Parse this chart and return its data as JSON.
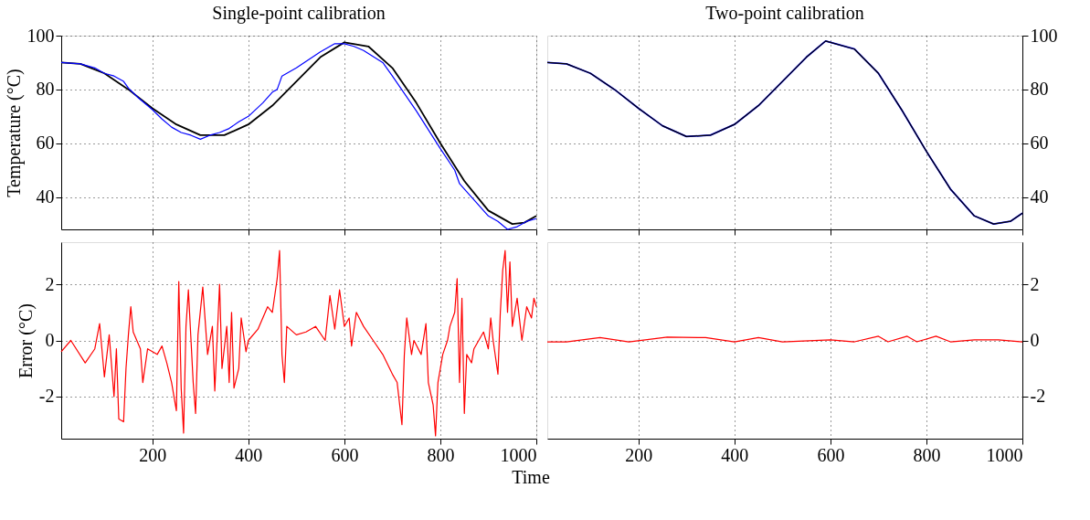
{
  "chart_data": [
    {
      "type": "line",
      "title": "Single-point calibration",
      "ylabel": "Temperature (°C)",
      "xlim": [
        10,
        1000
      ],
      "ylim": [
        28,
        100
      ],
      "xticks": [
        200,
        400,
        600,
        800,
        1000
      ],
      "yticks": [
        40,
        60,
        80,
        100
      ],
      "grid": true,
      "tick_labels": "y",
      "series": [
        {
          "color": "#000000",
          "x": [
            10,
            50,
            100,
            150,
            200,
            250,
            300,
            350,
            400,
            450,
            500,
            550,
            600,
            650,
            700,
            750,
            800,
            850,
            900,
            950,
            975,
            1000
          ],
          "values": [
            90,
            89.5,
            86,
            80,
            73,
            67,
            63,
            63,
            67,
            74,
            83,
            92,
            97.5,
            96,
            88,
            75,
            60,
            46,
            35,
            30,
            30.5,
            33
          ]
        },
        {
          "color": "#0000ff",
          "x": [
            10,
            50,
            80,
            100,
            120,
            140,
            150,
            170,
            200,
            220,
            240,
            260,
            280,
            300,
            320,
            340,
            360,
            380,
            400,
            430,
            450,
            460,
            470,
            500,
            550,
            580,
            600,
            620,
            640,
            680,
            700,
            750,
            800,
            830,
            840,
            850,
            870,
            900,
            920,
            940,
            960,
            980,
            1000
          ],
          "values": [
            90,
            89.5,
            88,
            86,
            85,
            83,
            80.5,
            77,
            72.5,
            69,
            66,
            64,
            63,
            61.5,
            63,
            64,
            65.5,
            68,
            70,
            75,
            79,
            80,
            85,
            88,
            94,
            97,
            97,
            96,
            94.5,
            90,
            85,
            72,
            58,
            50,
            45,
            43,
            39,
            33,
            31,
            28,
            29,
            31,
            32
          ]
        }
      ]
    },
    {
      "type": "line",
      "title": "Two-point calibration",
      "xlim": [
        10,
        1000
      ],
      "ylim": [
        28,
        100
      ],
      "xticks": [
        200,
        400,
        600,
        800,
        1000
      ],
      "yticks": [
        40,
        60,
        80,
        100
      ],
      "grid": true,
      "tick_labels": "y",
      "series": [
        {
          "color": "#0000ff",
          "x": [
            10,
            50,
            100,
            150,
            200,
            250,
            300,
            350,
            400,
            450,
            500,
            550,
            590,
            650,
            700,
            750,
            800,
            850,
            900,
            940,
            975,
            1000
          ],
          "values": [
            90,
            89.5,
            86,
            80,
            73,
            66.5,
            62.5,
            63,
            67,
            74,
            83,
            92,
            98,
            95,
            86,
            72,
            57,
            43,
            33,
            30,
            31,
            34
          ]
        },
        {
          "color": "#000000",
          "x": [
            10,
            50,
            100,
            150,
            200,
            250,
            300,
            350,
            400,
            450,
            500,
            550,
            590,
            650,
            700,
            750,
            800,
            850,
            900,
            940,
            975,
            1000
          ],
          "values": [
            90,
            89.5,
            86,
            80,
            73,
            66.5,
            62.5,
            63,
            67,
            74,
            83,
            92,
            98,
            95,
            86,
            72,
            57,
            43,
            33,
            30,
            31,
            34
          ]
        }
      ]
    },
    {
      "type": "line",
      "ylabel": "Error (°C)",
      "xlabel": "Time",
      "xlim": [
        10,
        1000
      ],
      "ylim": [
        -3.5,
        3.5
      ],
      "xticks": [
        200,
        400,
        600,
        800,
        {
          "value": 1000,
          "label": "1000"
        }
      ],
      "yticks": [
        -2,
        0,
        2
      ],
      "grid": true,
      "series": [
        {
          "color": "#ff0000",
          "x": [
            10,
            30,
            60,
            80,
            90,
            100,
            110,
            120,
            125,
            130,
            140,
            145,
            150,
            155,
            160,
            175,
            180,
            190,
            210,
            220,
            230,
            240,
            250,
            255,
            260,
            265,
            270,
            275,
            285,
            290,
            295,
            305,
            315,
            325,
            330,
            340,
            345,
            355,
            360,
            365,
            370,
            380,
            385,
            395,
            400,
            420,
            440,
            450,
            460,
            465,
            470,
            475,
            480,
            500,
            520,
            540,
            560,
            570,
            580,
            590,
            600,
            610,
            615,
            625,
            640,
            660,
            680,
            700,
            710,
            720,
            725,
            730,
            740,
            745,
            760,
            770,
            775,
            785,
            790,
            795,
            805,
            815,
            820,
            830,
            835,
            840,
            845,
            850,
            855,
            865,
            870,
            880,
            890,
            900,
            905,
            910,
            920,
            925,
            930,
            935,
            940,
            945,
            950,
            960,
            970,
            980,
            990,
            995,
            1000
          ],
          "values": [
            -0.4,
            0,
            -0.8,
            -0.3,
            0.6,
            -1.3,
            0.2,
            -2,
            -0.3,
            -2.8,
            -2.9,
            -1,
            0.2,
            1.2,
            0.3,
            -0.3,
            -1.5,
            -0.3,
            -0.5,
            -0.2,
            -0.8,
            -1.5,
            -2.5,
            2.1,
            -1.7,
            -3.3,
            0.5,
            1.8,
            -1.5,
            -2.6,
            0.2,
            1.9,
            -0.5,
            0.5,
            -1.8,
            2,
            -1,
            0.5,
            -1.5,
            1,
            -1.7,
            -1,
            0.8,
            -0.4,
            0,
            0.4,
            1.2,
            1,
            2.2,
            3.2,
            -0.5,
            -1.5,
            0.5,
            0.2,
            0.3,
            0.5,
            0,
            1.6,
            0.4,
            1.8,
            0.5,
            0.8,
            -0.2,
            1,
            0.5,
            0,
            -0.5,
            -1.2,
            -1.5,
            -3,
            -0.5,
            0.8,
            -0.5,
            0,
            -0.5,
            0.6,
            -1.5,
            -2.3,
            -3.4,
            -1.5,
            -0.5,
            0,
            0.5,
            1,
            2.2,
            -1.5,
            1.5,
            -2.6,
            -0.5,
            -0.8,
            -0.3,
            0,
            0.3,
            -0.3,
            0.8,
            0,
            -1.2,
            1,
            2.5,
            3.2,
            1,
            2.8,
            0.5,
            1.5,
            0,
            1.2,
            0.8,
            1.5,
            1.2
          ]
        }
      ]
    },
    {
      "type": "line",
      "xlim": [
        10,
        1000
      ],
      "ylim": [
        -3.5,
        3.5
      ],
      "xticks": [
        200,
        400,
        600,
        800,
        {
          "value": 1000,
          "label": "1000"
        }
      ],
      "yticks": [
        -2,
        0,
        2
      ],
      "grid": true,
      "series": [
        {
          "color": "#ff0000",
          "x": [
            10,
            50,
            120,
            180,
            260,
            340,
            400,
            450,
            500,
            600,
            650,
            700,
            720,
            760,
            780,
            820,
            850,
            900,
            950,
            1000
          ],
          "values": [
            -0.05,
            -0.05,
            0.1,
            -0.05,
            0.12,
            0.1,
            -0.05,
            0.1,
            -0.05,
            0.02,
            -0.05,
            0.15,
            -0.05,
            0.15,
            -0.05,
            0.15,
            -0.05,
            0.02,
            0.02,
            -0.05
          ]
        }
      ]
    }
  ]
}
